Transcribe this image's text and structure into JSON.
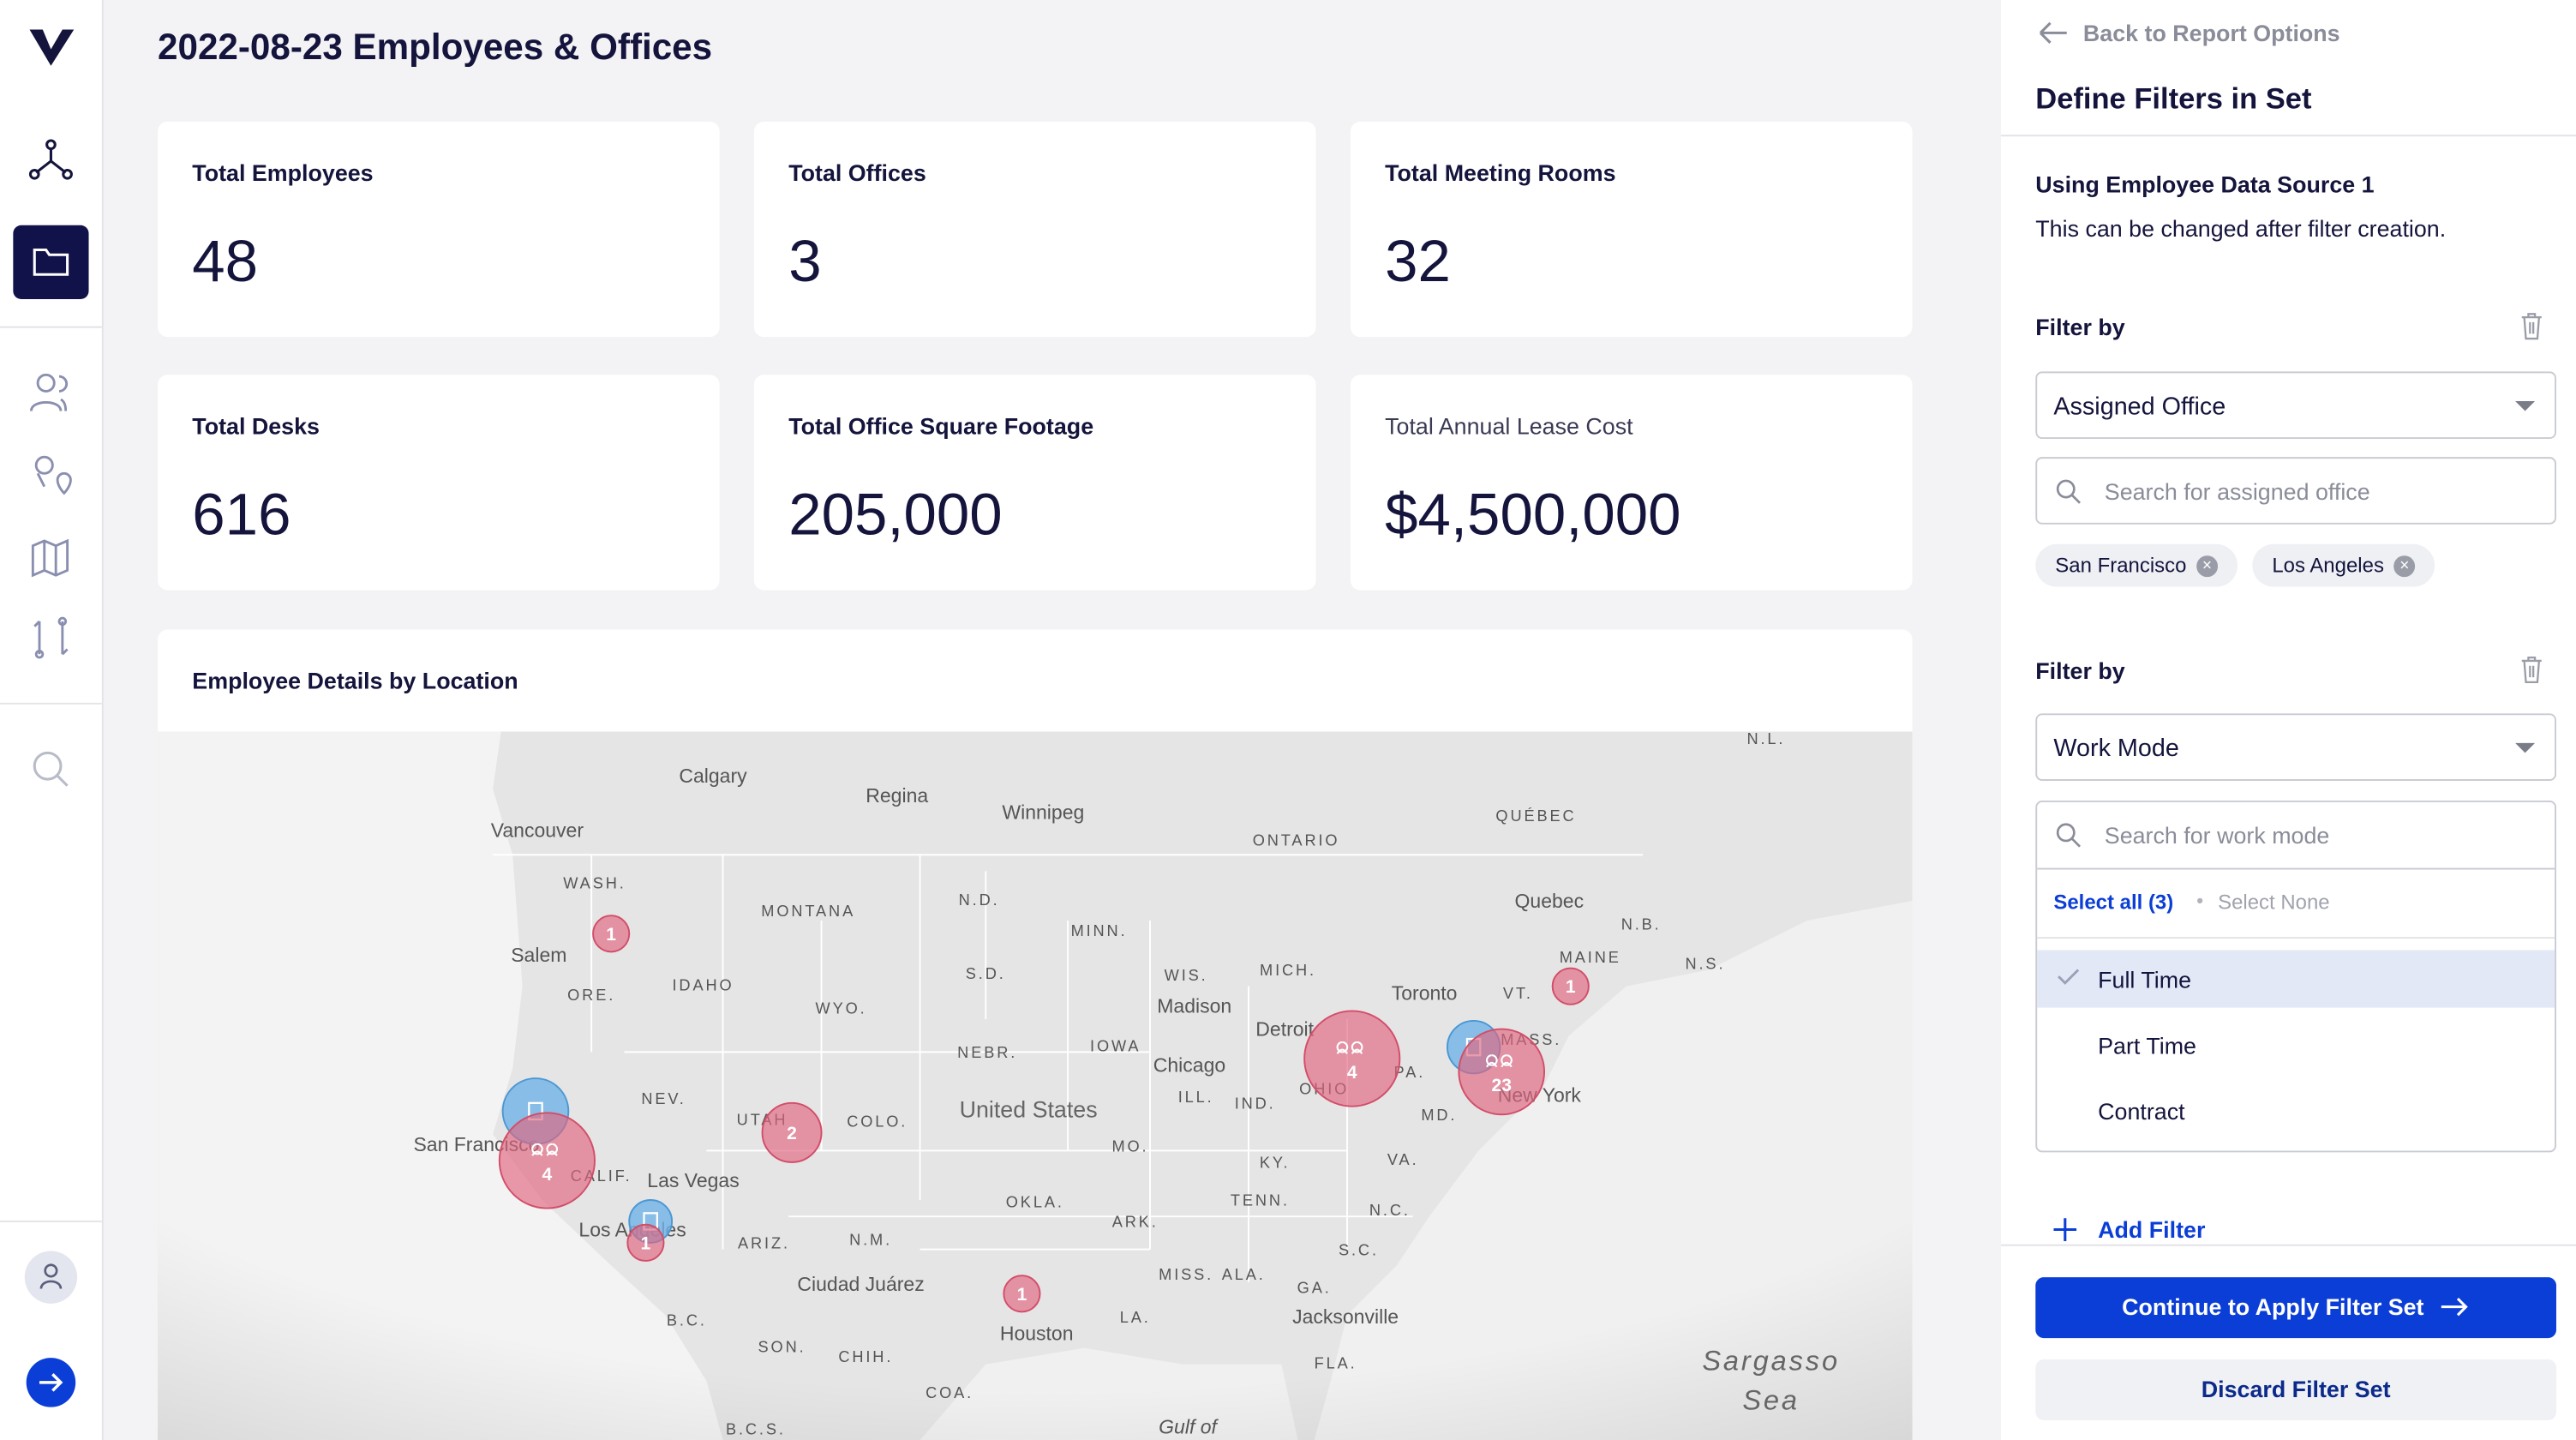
{
  "header": {
    "title": "2022-08-23 Employees & Offices"
  },
  "stats": [
    {
      "label": "Total Employees",
      "value": "48"
    },
    {
      "label": "Total Offices",
      "value": "3"
    },
    {
      "label": "Total Meeting Rooms",
      "value": "32"
    },
    {
      "label": "Total Desks",
      "value": "616"
    },
    {
      "label": "Total Office Square Footage",
      "value": "205,000"
    },
    {
      "label": "Total Annual Lease Cost",
      "value": "$4,500,000"
    }
  ],
  "map": {
    "title": "Employee Details by Location",
    "labels": [
      "Calgary",
      "Regina",
      "Winnipeg",
      "Vancouver",
      "WASH.",
      "MONTANA",
      "N.D.",
      "MINN.",
      "ONTARIO",
      "QUÉBEC",
      "Quebec",
      "N.B.",
      "N.S.",
      "N.L.",
      "Salem",
      "ORE.",
      "IDAHO",
      "WYO.",
      "S.D.",
      "WIS.",
      "MICH.",
      "Madison",
      "Toronto",
      "VT.",
      "MAINE",
      "NEBR.",
      "IOWA",
      "Chicago",
      "Detroit",
      "NEV.",
      "UTAH",
      "COLO.",
      "United States",
      "ILL.",
      "IND.",
      "OHIO",
      "PA.",
      "MASS.",
      "New York",
      "MD.",
      "San Francisco",
      "CALIF.",
      "Las Vegas",
      "MO.",
      "KY.",
      "VA.",
      "Los Angeles",
      "ARIZ.",
      "N.M.",
      "OKLA.",
      "ARK.",
      "TENN.",
      "N.C.",
      "S.C.",
      "Ciudad Juárez",
      "MISS.",
      "ALA.",
      "GA.",
      "Jacksonville",
      "Houston",
      "LA.",
      "SON.",
      "CHIH.",
      "B.C.",
      "FLA.",
      "COA.",
      "Sargasso",
      "Sea",
      "Gulf of",
      "B.C.S."
    ],
    "clusters": [
      1,
      4,
      1,
      2,
      4,
      23,
      1,
      1
    ]
  },
  "panel": {
    "back": "Back to Report Options",
    "title": "Define Filters in Set",
    "source": "Using Employee Data Source 1",
    "source_note": "This can be changed after filter creation.",
    "filters": [
      {
        "label": "Filter by",
        "field": "Assigned Office",
        "search": "Search for assigned office",
        "chips": [
          "San Francisco",
          "Los Angeles"
        ]
      },
      {
        "label": "Filter by",
        "field": "Work Mode",
        "search": "Search for work mode",
        "select_all": "Select all (3)",
        "select_none": "Select None",
        "options": [
          "Full Time",
          "Part Time",
          "Contract"
        ]
      }
    ],
    "add_filter": "Add Filter",
    "apply": "Continue to Apply Filter Set",
    "discard": "Discard Filter Set"
  }
}
